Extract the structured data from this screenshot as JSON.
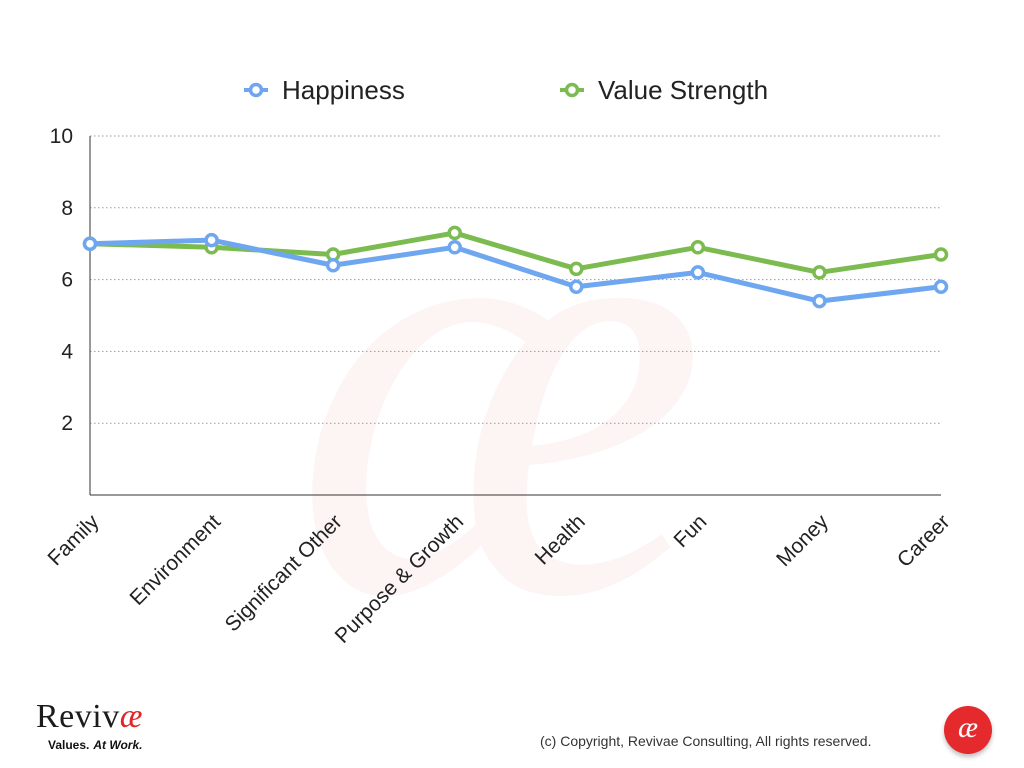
{
  "chart_data": {
    "type": "line",
    "categories": [
      "Family",
      "Environment",
      "Significant Other",
      "Purpose & Growth",
      "Health",
      "Fun",
      "Money",
      "Career"
    ],
    "series": [
      {
        "name": "Happiness",
        "color": "#6ea7f0",
        "values": [
          7.0,
          7.1,
          6.4,
          6.9,
          5.8,
          6.2,
          5.4,
          5.8
        ]
      },
      {
        "name": "Value Strength",
        "color": "#7cbb4f",
        "values": [
          7.0,
          6.9,
          6.7,
          7.3,
          6.3,
          6.9,
          6.2,
          6.7
        ]
      }
    ],
    "ylim": [
      0,
      10
    ],
    "yticks": [
      "2",
      "4",
      "6",
      "8",
      "10"
    ],
    "grid": true,
    "legend_position": "top-center"
  },
  "branding": {
    "name_main": "Reviv",
    "name_ae": "æ",
    "tagline_a": "Values.",
    "tagline_b": "At Work.",
    "logo_mark": "æ",
    "watermark_mark": "æ",
    "accent_color": "#e0262a",
    "copyright": "(c) Copyright, Revivae Consulting, All rights reserved."
  }
}
